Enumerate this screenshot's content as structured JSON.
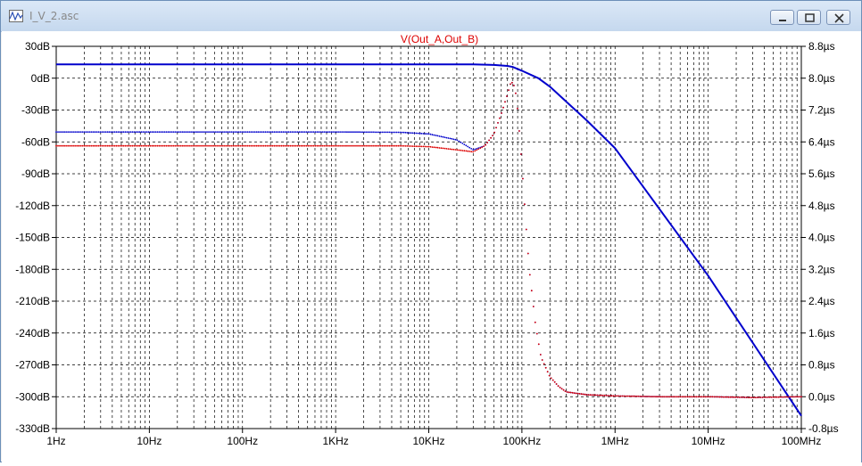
{
  "window": {
    "title": "I_V_2.asc",
    "buttons": {
      "minimize": "minimize",
      "maximize": "maximize",
      "close": "close"
    }
  },
  "chart_data": {
    "type": "line",
    "title": "V(Out_A,Out_B)",
    "title_color": "#dd0000",
    "x_scale": "log",
    "xlim": [
      1,
      100000000
    ],
    "x_ticks": [
      "1Hz",
      "10Hz",
      "100Hz",
      "1KHz",
      "10KHz",
      "100KHz",
      "1MHz",
      "10MHz",
      "100MHz"
    ],
    "y_left_ticks": [
      "30dB",
      "0dB",
      "-30dB",
      "-60dB",
      "-90dB",
      "-120dB",
      "-150dB",
      "-180dB",
      "-210dB",
      "-240dB",
      "-270dB",
      "-300dB",
      "-330dB"
    ],
    "y_left_lim": [
      -330,
      30
    ],
    "y_right_ticks": [
      "8.8µs",
      "8.0µs",
      "7.2µs",
      "6.4µs",
      "5.6µs",
      "4.8µs",
      "4.0µs",
      "3.2µs",
      "2.4µs",
      "1.6µs",
      "0.8µs",
      "0.0µs",
      "-0.8µs"
    ],
    "y_right_lim": [
      -0.8,
      8.8
    ],
    "grid": true,
    "series": [
      {
        "color": "#0000cc",
        "style": "solid",
        "axis": "left",
        "x": [
          1,
          1000,
          10000,
          30000,
          50000,
          70000,
          80000,
          100000,
          150000,
          200000,
          500000,
          1000000,
          10000000,
          100000000
        ],
        "y": [
          13,
          13,
          13,
          13,
          12.5,
          11.5,
          10.5,
          7,
          0,
          -8,
          -40,
          -66,
          -186,
          -318
        ]
      },
      {
        "color": "#0000cc",
        "style": "dotted",
        "axis": "right",
        "x": [
          1,
          1000,
          5000,
          10000,
          20000,
          30000,
          40000,
          50000,
          60000,
          70000,
          75000,
          80000,
          85000,
          90000,
          100000,
          110000,
          120000,
          140000,
          160000,
          200000,
          250000,
          300000,
          500000,
          1000000,
          3000000,
          10000000,
          30000000,
          100000000
        ],
        "y": [
          6.65,
          6.65,
          6.64,
          6.6,
          6.45,
          6.2,
          6.3,
          6.6,
          7.1,
          7.6,
          7.85,
          7.9,
          7.7,
          7.2,
          5.8,
          4.4,
          3.2,
          1.8,
          1.0,
          0.5,
          0.25,
          0.12,
          0.05,
          0.02,
          0.0,
          0.0,
          -0.02,
          0.0
        ]
      },
      {
        "color": "#dd0000",
        "style": "dotted",
        "axis": "right",
        "x": [
          1,
          1000,
          5000,
          10000,
          20000,
          30000,
          40000,
          50000,
          60000,
          70000,
          75000,
          80000,
          85000,
          90000,
          100000,
          110000,
          120000,
          140000,
          160000,
          200000,
          250000,
          300000,
          500000,
          1000000,
          3000000,
          10000000,
          30000000,
          100000000
        ],
        "y": [
          6.3,
          6.3,
          6.3,
          6.28,
          6.2,
          6.15,
          6.3,
          6.6,
          7.1,
          7.6,
          7.85,
          7.9,
          7.7,
          7.2,
          5.8,
          4.4,
          3.2,
          1.8,
          1.0,
          0.5,
          0.25,
          0.12,
          0.05,
          0.02,
          0.0,
          0.0,
          -0.02,
          0.0
        ]
      }
    ]
  }
}
